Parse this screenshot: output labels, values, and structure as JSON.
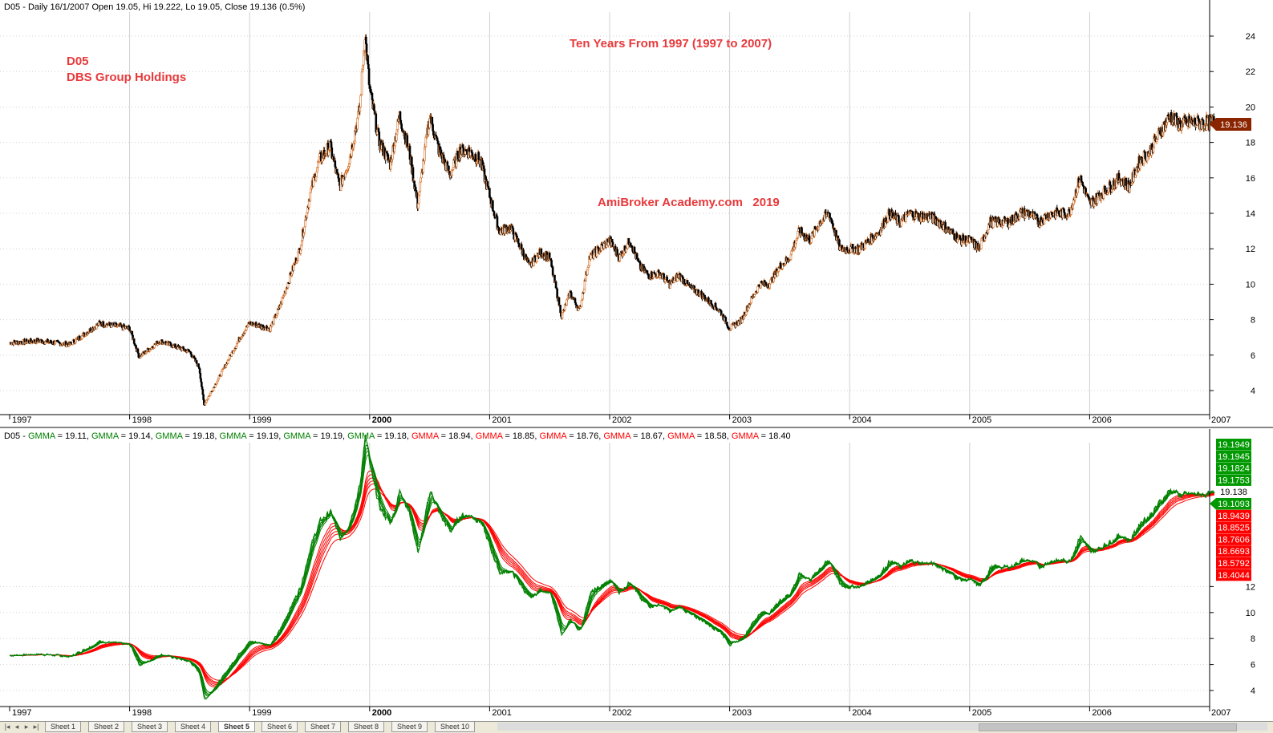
{
  "top_pane": {
    "header": "D05 - Daily 16/1/2007 Open 19.05, Hi 19.222, Lo 19.05, Close 19.136 (0.5%)",
    "annot_symbol": "D05",
    "annot_name": "DBS Group Holdings",
    "annot_title": "Ten Years From 1997 (1997 to 2007)",
    "annot_watermark": "AmiBroker Academy.com   2019",
    "last_price_label": "19.136",
    "y_ticks": [
      "4",
      "6",
      "8",
      "10",
      "12",
      "14",
      "16",
      "18",
      "20",
      "22",
      "24"
    ]
  },
  "bottom_pane": {
    "header_prefix": "D05 - ",
    "gmma_items": [
      {
        "text": "GMMA = 19.11,",
        "color": "#008000"
      },
      {
        "text": "GMMA = 19.14,",
        "color": "#008000"
      },
      {
        "text": "GMMA = 19.18,",
        "color": "#008000"
      },
      {
        "text": "GMMA = 19.19,",
        "color": "#008000"
      },
      {
        "text": "GMMA = 19.19,",
        "color": "#008000"
      },
      {
        "text": "GMMA = 19.18,",
        "color": "#008000"
      },
      {
        "text": "GMMA = 18.94,",
        "color": "#ff0000"
      },
      {
        "text": "GMMA = 18.85,",
        "color": "#ff0000"
      },
      {
        "text": "GMMA = 18.76,",
        "color": "#ff0000"
      },
      {
        "text": "GMMA = 18.67,",
        "color": "#ff0000"
      },
      {
        "text": "GMMA = 18.58,",
        "color": "#ff0000"
      },
      {
        "text": "GMMA = 18.40",
        "color": "#ff0000"
      }
    ],
    "y_ticks": [
      "4",
      "6",
      "8",
      "10",
      "12"
    ],
    "value_labels": [
      {
        "text": "19.1949",
        "color": "#009900"
      },
      {
        "text": "19.1945",
        "color": "#009900"
      },
      {
        "text": "19.1824",
        "color": "#009900"
      },
      {
        "text": "19.1753",
        "color": "#009900"
      },
      {
        "text": "19.138",
        "color": "#ffffff"
      },
      {
        "text": "19.1093",
        "color": "#009900"
      },
      {
        "text": "18.9439",
        "color": "#ff0000"
      },
      {
        "text": "18.8525",
        "color": "#ff0000"
      },
      {
        "text": "18.7606",
        "color": "#ff0000"
      },
      {
        "text": "18.6693",
        "color": "#ff0000"
      },
      {
        "text": "18.5792",
        "color": "#ff0000"
      },
      {
        "text": "18.4044",
        "color": "#ff0000"
      }
    ]
  },
  "x_axis_labels": [
    "1997",
    "1998",
    "1999",
    "2000",
    "2001",
    "2002",
    "2003",
    "2004",
    "2005",
    "2006",
    "2007"
  ],
  "colors": {
    "annotation_red": "#e8393b",
    "candle_up": "#d2691e",
    "candle_down": "#000000",
    "gmma_short": "#008000",
    "gmma_long": "#ff0000",
    "price_tag": "#8b2500",
    "grid": "#d0d0d0"
  },
  "tabs": [
    "Sheet 1",
    "Sheet 2",
    "Sheet 3",
    "Sheet 4",
    "Sheet 5",
    "Sheet 6",
    "Sheet 7",
    "Sheet 8",
    "Sheet 9",
    "Sheet 10"
  ],
  "active_tab": "Sheet 5",
  "chart_data": {
    "type": "line",
    "title": "Ten Years From 1997 (1997 to 2007)",
    "xlabel": "",
    "ylabel": "",
    "x": [
      1997.0,
      1997.25,
      1997.5,
      1997.75,
      1998.0,
      1998.08,
      1998.25,
      1998.5,
      1998.58,
      1998.62,
      1998.75,
      1998.92,
      1999.0,
      1999.17,
      1999.25,
      1999.33,
      1999.42,
      1999.5,
      1999.58,
      1999.67,
      1999.75,
      1999.83,
      1999.92,
      1999.96,
      2000.0,
      2000.08,
      2000.17,
      2000.25,
      2000.33,
      2000.4,
      2000.5,
      2000.58,
      2000.67,
      2000.75,
      2000.83,
      2000.92,
      2001.0,
      2001.08,
      2001.17,
      2001.25,
      2001.33,
      2001.42,
      2001.5,
      2001.6,
      2001.67,
      2001.75,
      2001.83,
      2001.92,
      2002.0,
      2002.08,
      2002.17,
      2002.25,
      2002.33,
      2002.42,
      2002.5,
      2002.58,
      2002.67,
      2002.75,
      2002.83,
      2002.92,
      2003.0,
      2003.1,
      2003.17,
      2003.25,
      2003.33,
      2003.42,
      2003.5,
      2003.58,
      2003.67,
      2003.75,
      2003.83,
      2003.92,
      2004.0,
      2004.08,
      2004.17,
      2004.25,
      2004.33,
      2004.42,
      2004.5,
      2004.58,
      2004.67,
      2004.75,
      2004.83,
      2004.92,
      2005.0,
      2005.08,
      2005.17,
      2005.25,
      2005.33,
      2005.42,
      2005.5,
      2005.58,
      2005.67,
      2005.75,
      2005.83,
      2005.92,
      2006.0,
      2006.08,
      2006.17,
      2006.25,
      2006.33,
      2006.42,
      2006.5,
      2006.58,
      2006.67,
      2006.75,
      2006.83,
      2006.92,
      2007.0,
      2007.04
    ],
    "series": [
      {
        "values": [
          6.7,
          6.8,
          6.6,
          7.8,
          7.5,
          5.9,
          6.8,
          6.2,
          5.3,
          3.2,
          4.8,
          7.0,
          7.8,
          7.5,
          8.7,
          10.3,
          12.0,
          15.0,
          17.0,
          17.8,
          15.5,
          17.0,
          20.0,
          24.2,
          21.0,
          18.0,
          16.8,
          19.5,
          17.5,
          14.5,
          19.5,
          17.5,
          16.2,
          17.5,
          17.5,
          17.0,
          15.0,
          13.0,
          13.2,
          12.2,
          11.0,
          11.8,
          11.5,
          8.2,
          9.5,
          8.5,
          11.5,
          12.0,
          12.5,
          11.5,
          12.5,
          11.0,
          10.5,
          10.6,
          10.0,
          10.5,
          9.8,
          9.5,
          9.0,
          8.5,
          7.5,
          8.0,
          9.0,
          10.0,
          10.0,
          11.0,
          11.5,
          13.0,
          12.5,
          13.5,
          14.0,
          12.0,
          12.0,
          12.0,
          12.5,
          13.0,
          14.0,
          13.5,
          14.0,
          13.8,
          13.8,
          13.5,
          13.0,
          12.5,
          12.5,
          12.0,
          13.5,
          13.5,
          13.5,
          14.0,
          14.0,
          13.5,
          14.0,
          14.0,
          14.0,
          16.0,
          14.5,
          15.0,
          15.5,
          16.0,
          15.5,
          17.0,
          17.5,
          18.5,
          19.5,
          19.0,
          19.1,
          19.1,
          19.1,
          19.136
        ]
      }
    ]
  }
}
